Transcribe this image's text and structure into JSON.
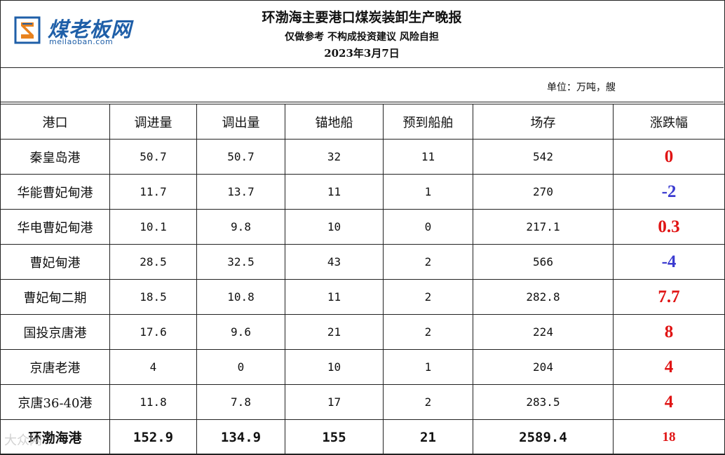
{
  "header": {
    "logo_name": "煤老板网",
    "logo_url": "meilaoban.com",
    "title": "环渤海主要港口煤炭装卸生产晚报",
    "subtitle": "仅做参考 不构成投资建议 风险自担",
    "date": "2023年3月7日"
  },
  "unit": "单位：万吨，艘",
  "colors": {
    "positive": "#e01414",
    "negative": "#3b3bd0",
    "zero": "#e01414",
    "logo": "#1f5fa8"
  },
  "table": {
    "headers": [
      "港口",
      "调进量",
      "调出量",
      "锚地船",
      "预到船舶",
      "场存",
      "涨跌幅"
    ],
    "rows": [
      {
        "port": "秦皇岛港",
        "in": "50.7",
        "out": "50.7",
        "anchor": "32",
        "expected": "11",
        "stock": "542",
        "change": "0",
        "sign": "zero"
      },
      {
        "port": "华能曹妃甸港",
        "in": "11.7",
        "out": "13.7",
        "anchor": "11",
        "expected": "1",
        "stock": "270",
        "change": "-2",
        "sign": "negative"
      },
      {
        "port": "华电曹妃甸港",
        "in": "10.1",
        "out": "9.8",
        "anchor": "10",
        "expected": "0",
        "stock": "217.1",
        "change": "0.3",
        "sign": "positive"
      },
      {
        "port": "曹妃甸港",
        "in": "28.5",
        "out": "32.5",
        "anchor": "43",
        "expected": "2",
        "stock": "566",
        "change": "-4",
        "sign": "negative"
      },
      {
        "port": "曹妃甸二期",
        "in": "18.5",
        "out": "10.8",
        "anchor": "11",
        "expected": "2",
        "stock": "282.8",
        "change": "7.7",
        "sign": "positive"
      },
      {
        "port": "国投京唐港",
        "in": "17.6",
        "out": "9.6",
        "anchor": "21",
        "expected": "2",
        "stock": "224",
        "change": "8",
        "sign": "positive"
      },
      {
        "port": "京唐老港",
        "in": "4",
        "out": "0",
        "anchor": "10",
        "expected": "1",
        "stock": "204",
        "change": "4",
        "sign": "positive"
      },
      {
        "port": "京唐36-40港",
        "in": "11.8",
        "out": "7.8",
        "anchor": "17",
        "expected": "2",
        "stock": "283.5",
        "change": "4",
        "sign": "positive"
      }
    ],
    "total": {
      "port": "环渤海港",
      "in": "152.9",
      "out": "134.9",
      "anchor": "155",
      "expected": "21",
      "stock": "2589.4",
      "change": "18",
      "sign": "positive"
    }
  },
  "watermark": "大众网"
}
